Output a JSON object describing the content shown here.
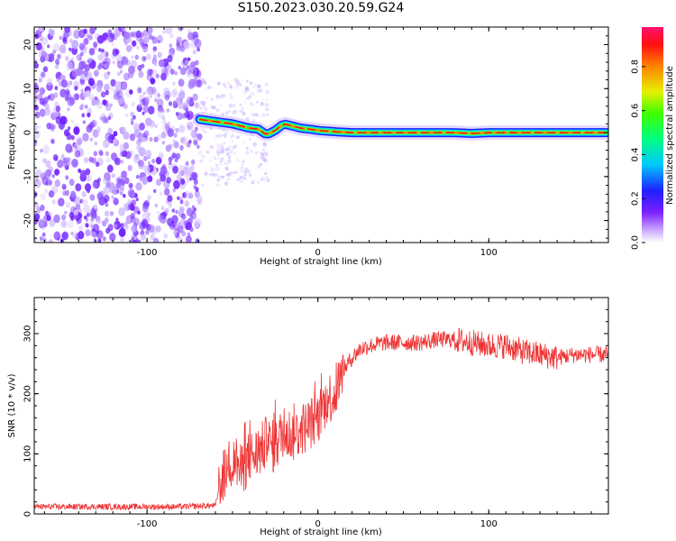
{
  "title": "S150.2023.030.20.59.G24",
  "chart_data": [
    {
      "type": "heatmap",
      "xlabel": "Height of straight line (km)",
      "ylabel": "Frequency (Hz)",
      "xlim": [
        -166,
        170
      ],
      "ylim": [
        -25,
        24
      ],
      "xticks": [
        -100,
        0,
        100
      ],
      "yticks": [
        -20,
        -10,
        0,
        10,
        20
      ],
      "colorbar": {
        "label": "Normalized spectral amplitude",
        "range": [
          0.0,
          0.98
        ],
        "ticks": [
          0.0,
          0.2,
          0.4,
          0.6,
          0.8
        ]
      },
      "noise_region_x": [
        -166,
        -69
      ],
      "ridge": {
        "x": [
          -69,
          -60,
          -50,
          -40,
          -35,
          -30,
          -25,
          -20,
          -15,
          -10,
          -5,
          0,
          10,
          20,
          30,
          40,
          50,
          60,
          70,
          80,
          90,
          100,
          110,
          120,
          130,
          140,
          150,
          160,
          170
        ],
        "y": [
          3.0,
          2.5,
          2.0,
          1.0,
          0.8,
          -0.5,
          0.5,
          2.0,
          1.5,
          1.0,
          0.8,
          0.5,
          0.2,
          0.0,
          0.0,
          0.0,
          0.0,
          0.0,
          0.0,
          0.0,
          -0.2,
          0.0,
          0.0,
          0.0,
          0.0,
          0.0,
          0.0,
          0.0,
          0.0
        ]
      }
    },
    {
      "type": "line",
      "xlabel": "Height of straight line (km)",
      "ylabel": "SNR (10 * v/v)",
      "xlim": [
        -166,
        170
      ],
      "ylim": [
        0,
        360
      ],
      "xticks": [
        -100,
        0,
        100
      ],
      "yticks": [
        0,
        100,
        200,
        300
      ],
      "color": "#ee3333",
      "series": [
        {
          "x": [
            -166,
            -140,
            -110,
            -80,
            -60,
            -57,
            -52,
            -48,
            -45,
            -40,
            -35,
            -30,
            -25,
            -20,
            -15,
            -10,
            -5,
            0,
            5,
            10,
            15,
            20,
            25,
            30,
            40,
            50,
            60,
            70,
            80,
            90,
            100,
            110,
            120,
            130,
            140,
            150,
            160,
            170
          ],
          "y": [
            12,
            12,
            12,
            12,
            14,
            55,
            80,
            90,
            70,
            95,
            100,
            120,
            110,
            140,
            130,
            140,
            150,
            160,
            190,
            200,
            240,
            260,
            275,
            280,
            285,
            285,
            285,
            290,
            290,
            285,
            280,
            280,
            270,
            265,
            260,
            265,
            265,
            265
          ]
        }
      ]
    }
  ]
}
